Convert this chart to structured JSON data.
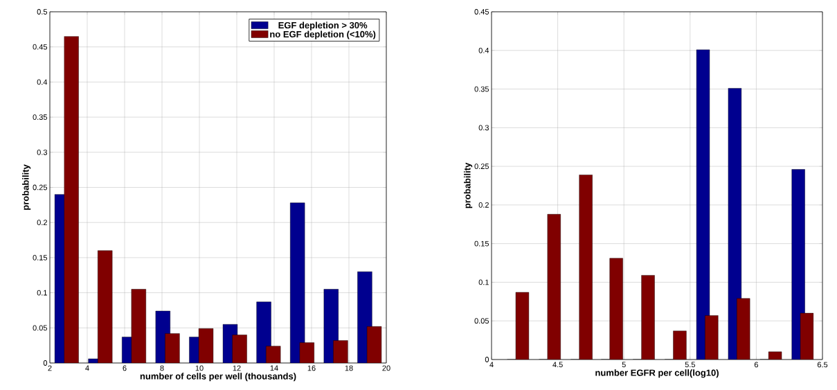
{
  "chart_data": [
    {
      "type": "bar",
      "xlabel": "number of cells per well (thousands)",
      "ylabel": "probability",
      "x": [
        2.9,
        4.7,
        6.5,
        8.3,
        10.1,
        11.9,
        13.7,
        15.5,
        17.3,
        19.1
      ],
      "series": [
        {
          "name": "EGF depletion > 30%",
          "color": "#00008f",
          "values": [
            0.24,
            0.006,
            0.037,
            0.074,
            0.037,
            0.055,
            0.087,
            0.228,
            0.105,
            0.13
          ]
        },
        {
          "name": "no EGF depletion (<10%)",
          "color": "#800000",
          "values": [
            0.465,
            0.16,
            0.105,
            0.042,
            0.049,
            0.04,
            0.024,
            0.029,
            0.032,
            0.052
          ]
        }
      ],
      "xlim": [
        2,
        20
      ],
      "ylim": [
        0,
        0.5
      ],
      "xticks": [
        2,
        4,
        6,
        8,
        10,
        12,
        14,
        16,
        18,
        20
      ],
      "yticks": [
        0,
        0.05,
        0.1,
        0.15,
        0.2,
        0.25,
        0.3,
        0.35,
        0.4,
        0.45,
        0.5
      ],
      "grid": true,
      "legend": "top right"
    },
    {
      "type": "bar",
      "xlabel": "number EGFR per cell(log10)",
      "ylabel": "probability",
      "x": [
        4.2,
        4.44,
        4.68,
        4.91,
        5.15,
        5.39,
        5.63,
        5.87,
        6.11,
        6.35
      ],
      "series": [
        {
          "color": "#00008f",
          "values": [
            0,
            0,
            0,
            0,
            0,
            0,
            0.401,
            0.351,
            0,
            0.246
          ]
        },
        {
          "color": "#800000",
          "values": [
            0.087,
            0.188,
            0.239,
            0.131,
            0.109,
            0.037,
            0.057,
            0.079,
            0.01,
            0.06
          ]
        }
      ],
      "xlim": [
        4,
        6.5
      ],
      "ylim": [
        0,
        0.45
      ],
      "xticks": [
        4,
        4.5,
        5,
        5.5,
        6,
        6.5
      ],
      "yticks": [
        0,
        0.05,
        0.1,
        0.15,
        0.2,
        0.25,
        0.3,
        0.35,
        0.4,
        0.45
      ],
      "grid": true,
      "legend": false
    }
  ]
}
